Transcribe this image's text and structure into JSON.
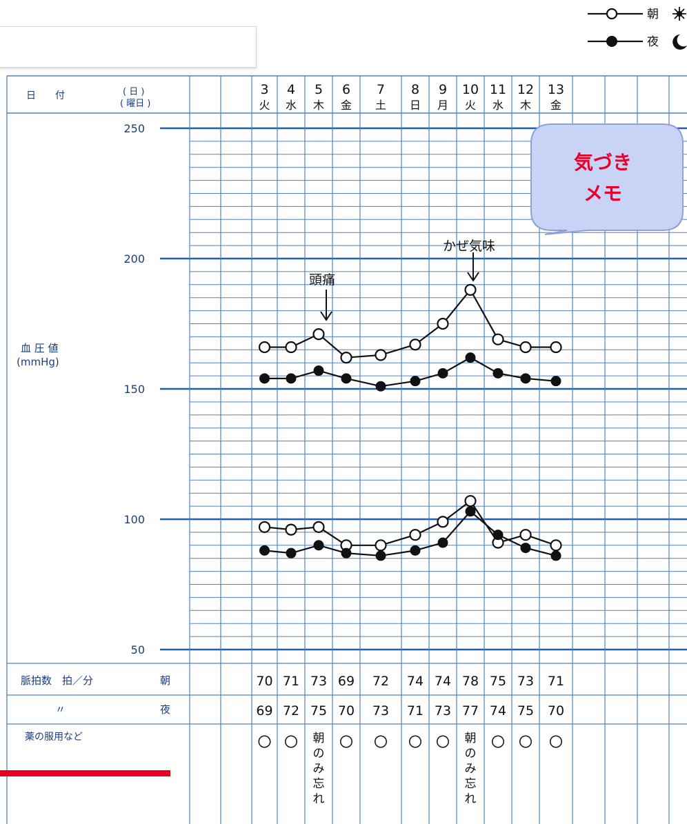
{
  "legend": {
    "morning_label": "朝",
    "night_label": "夜",
    "morning_icon": "sun-icon",
    "night_icon": "moon-icon"
  },
  "row_labels": {
    "date_label": "日　　付",
    "date_header_day": "( 日 )",
    "date_header_weekday": "( 曜日 )",
    "bp_label_line1": "血 圧 値",
    "bp_label_line2": "(mmHg)",
    "pulse_label": "脈拍数　拍／分",
    "pulse_morning": "朝",
    "pulse_ditto": "〃",
    "pulse_night": "夜",
    "medication_label": "薬の服用など"
  },
  "memo_bubble": {
    "line1": "気づき",
    "line2": "メモ",
    "fill": "#c9d3f6",
    "text_color": "#e8002a"
  },
  "annotations": [
    {
      "text": "頭痛",
      "day": "5"
    },
    {
      "text": "かぜ気味",
      "day": "10"
    }
  ],
  "colors": {
    "grid_major": "#1f5ea8",
    "grid_minor": "#4f81c4",
    "label_text": "#1a3c80",
    "red_bar": "#e8001c"
  },
  "chart_data": {
    "type": "line",
    "ylim": [
      50,
      250
    ],
    "yticks": [
      50,
      100,
      150,
      200,
      250
    ],
    "ylabel": "血 圧 値 (mmHg)",
    "grid": true,
    "legend_position": "top-right",
    "x": [
      "3",
      "4",
      "5",
      "6",
      "7",
      "8",
      "9",
      "10",
      "11",
      "12",
      "13"
    ],
    "weekdays": [
      "火",
      "水",
      "木",
      "金",
      "土",
      "日",
      "月",
      "火",
      "水",
      "木",
      "金"
    ],
    "series": [
      {
        "name": "朝",
        "kind": "systolic",
        "marker": "open",
        "values": [
          166,
          166,
          171,
          162,
          163,
          167,
          175,
          188,
          169,
          166,
          166
        ]
      },
      {
        "name": "夜",
        "kind": "systolic",
        "marker": "filled",
        "values": [
          154,
          154,
          157,
          154,
          151,
          153,
          156,
          162,
          156,
          154,
          153
        ]
      },
      {
        "name": "朝",
        "kind": "diastolic",
        "marker": "open",
        "values": [
          97,
          96,
          97,
          90,
          90,
          94,
          99,
          107,
          91,
          94,
          90
        ]
      },
      {
        "name": "夜",
        "kind": "diastolic",
        "marker": "filled",
        "values": [
          88,
          87,
          90,
          87,
          86,
          88,
          91,
          103,
          94,
          89,
          86
        ]
      }
    ],
    "pulse_morning": [
      "70",
      "71",
      "73",
      "69",
      "72",
      "74",
      "74",
      "78",
      "75",
      "73",
      "71"
    ],
    "pulse_night": [
      "69",
      "72",
      "75",
      "70",
      "73",
      "71",
      "73",
      "77",
      "74",
      "75",
      "70"
    ],
    "medication": [
      "〇",
      "〇",
      "朝のみ忘れ",
      "〇",
      "〇",
      "〇",
      "〇",
      "朝のみ忘れ",
      "〇",
      "〇",
      "〇"
    ]
  }
}
